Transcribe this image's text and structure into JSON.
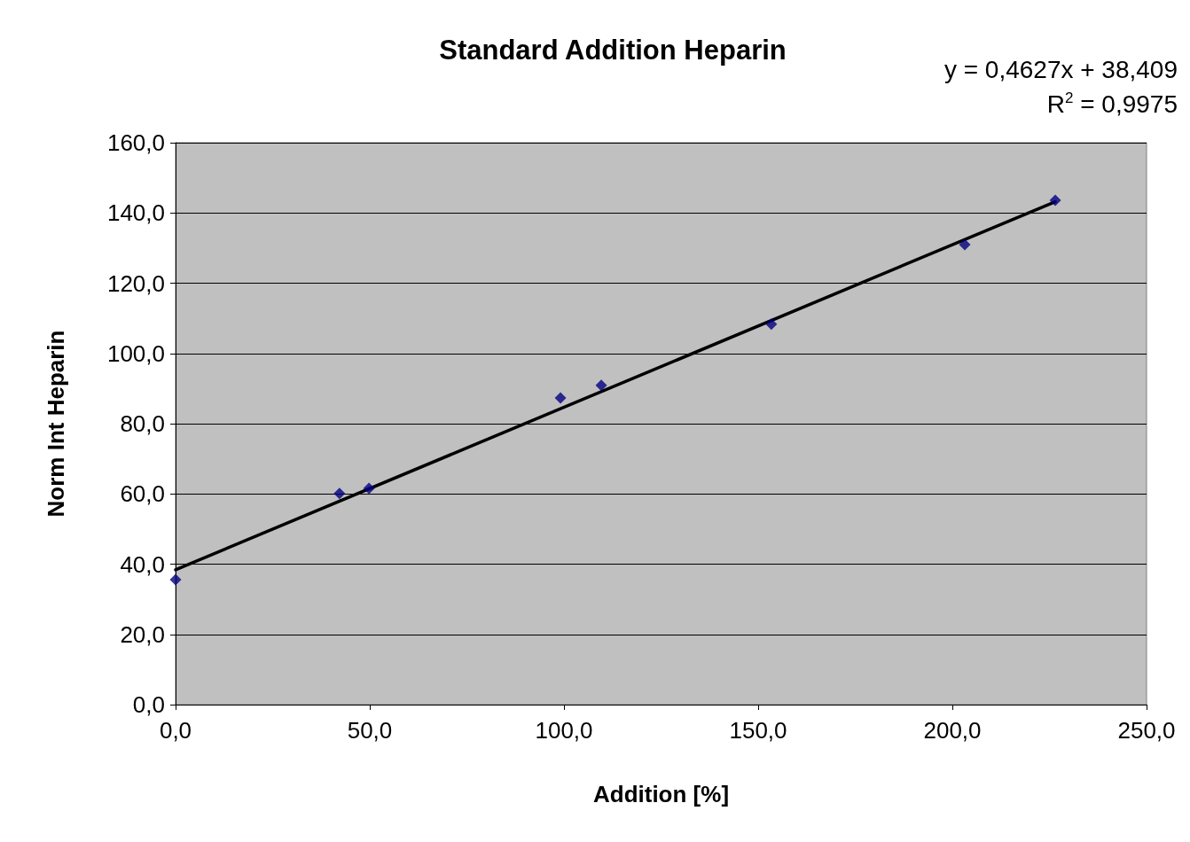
{
  "chart_data": {
    "type": "scatter",
    "title": "Standard Addition Heparin",
    "xlabel": "Addition [%]",
    "ylabel": "Norm Int Heparin",
    "annotations": [
      "y = 0,4627x + 38,409",
      "R$^{2}$ = 0,9975"
    ],
    "xlim": [
      0,
      250
    ],
    "xticks": [
      {
        "value": 0,
        "label": "0,0"
      },
      {
        "value": 50,
        "label": "50,0"
      },
      {
        "value": 100,
        "label": "100,0"
      },
      {
        "value": 150,
        "label": "150,0"
      },
      {
        "value": 200,
        "label": "200,0"
      },
      {
        "value": 250,
        "label": "250,0"
      }
    ],
    "ylim": [
      0,
      160
    ],
    "yticks": [
      {
        "value": 0,
        "label": "0,0"
      },
      {
        "value": 20,
        "label": "20,0"
      },
      {
        "value": 40,
        "label": "40,0"
      },
      {
        "value": 60,
        "label": "60,0"
      },
      {
        "value": 80,
        "label": "80,0"
      },
      {
        "value": 100,
        "label": "100,0"
      },
      {
        "value": 120,
        "label": "120,0"
      },
      {
        "value": 140,
        "label": "140,0"
      },
      {
        "value": 160,
        "label": "160,0"
      }
    ],
    "grid": "y",
    "marker": "diamond",
    "series": [
      {
        "color": "#000080",
        "x": [
          0,
          42.2,
          49.8,
          99.1,
          109.6,
          153.4,
          203.2,
          226.5
        ],
        "values": [
          35.6,
          60.1,
          61.6,
          87.3,
          90.9,
          108.3,
          131.0,
          143.6
        ]
      },
      {
        "type": "line",
        "color": "#000000",
        "marker": "none",
        "line_style": "solid",
        "x": [
          0,
          226.5
        ],
        "values": [
          38.4,
          143.2
        ]
      }
    ]
  }
}
